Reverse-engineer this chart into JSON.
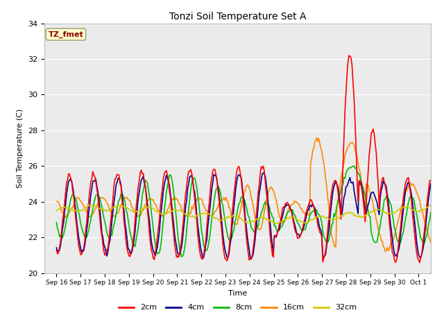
{
  "title": "Tonzi Soil Temperature Set A",
  "ylabel": "Soil Temperature (C)",
  "xlabel": "Time",
  "annotation": "TZ_fmet",
  "annotation_color": "#8B0000",
  "annotation_bg": "#FFFFCC",
  "ylim": [
    20,
    34
  ],
  "yticks": [
    20,
    22,
    24,
    26,
    28,
    30,
    32,
    34
  ],
  "xtick_labels": [
    "Sep 16",
    "Sep 17",
    "Sep 18",
    "Sep 19",
    "Sep 20",
    "Sep 21",
    "Sep 22",
    "Sep 23",
    "Sep 24",
    "Sep 25",
    "Sep 26",
    "Sep 27",
    "Sep 28",
    "Sep 29",
    "Sep 30",
    "Oct 1"
  ],
  "colors": {
    "2cm": "#FF0000",
    "4cm": "#00008B",
    "8cm": "#00BB00",
    "16cm": "#FF8800",
    "32cm": "#CCCC00"
  },
  "line_width": 1.2,
  "fig_bg": "#FFFFFF",
  "plot_bg": "#EBEBEB"
}
